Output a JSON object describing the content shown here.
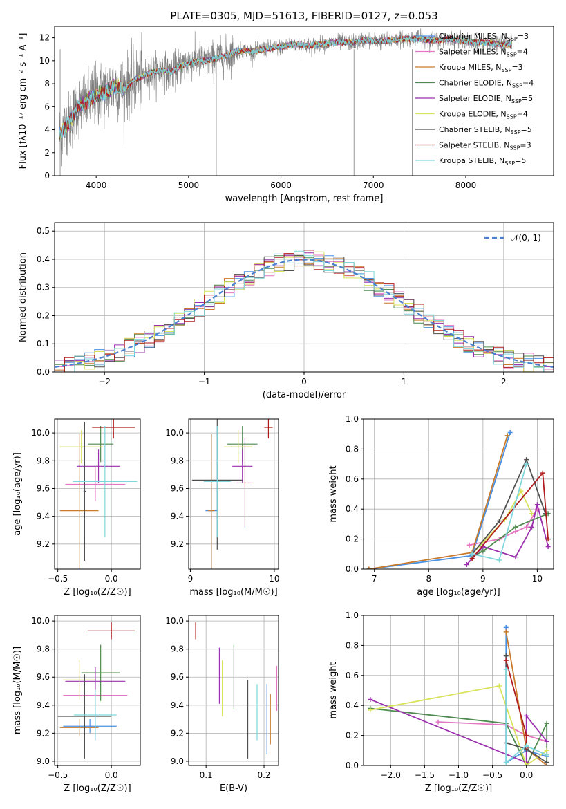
{
  "figure": {
    "title": "PLATE=0305, MJD=51613, FIBERID=0127, z=0.053"
  },
  "colors": {
    "data": "#7f7f7f",
    "series": [
      "#4a90e2",
      "#e377c2",
      "#c9792a",
      "#4f8a4f",
      "#9b2fae",
      "#d8e35a",
      "#505050",
      "#b01c1c",
      "#7fd6dc"
    ],
    "normal": "#4a7fd0",
    "grid": "#b0b0b0"
  },
  "series": [
    {
      "name": "Chabrier MILES",
      "nssp": "3"
    },
    {
      "name": "Salpeter MILES",
      "nssp": "4"
    },
    {
      "name": "Kroupa MILES",
      "nssp": "3"
    },
    {
      "name": "Chabrier ELODIE",
      "nssp": "4"
    },
    {
      "name": "Salpeter ELODIE",
      "nssp": "5"
    },
    {
      "name": "Kroupa ELODIE",
      "nssp": "4"
    },
    {
      "name": "Chabrier STELIB",
      "nssp": "5"
    },
    {
      "name": "Salpeter STELIB",
      "nssp": "3"
    },
    {
      "name": "Kroupa STELIB",
      "nssp": "5"
    }
  ],
  "nssp_prefix": "N",
  "nssp_sub": "SSP",
  "chart_data": [
    {
      "id": "spectrum",
      "type": "line",
      "xlabel": "wavelength [Angstrom, rest frame]",
      "ylabel": "Flux [fλ10⁻¹⁷ erg cm⁻² s⁻¹ A⁻¹]",
      "xlim": [
        3550,
        8950
      ],
      "ylim": [
        0,
        13
      ],
      "xticks": [
        4000,
        5000,
        6000,
        7000,
        8000
      ],
      "yticks": [
        0,
        2,
        4,
        6,
        8,
        10,
        12
      ],
      "grid": false,
      "legend": "top-right",
      "continuum": [
        [
          3600,
          3.5
        ],
        [
          3700,
          4.5
        ],
        [
          3800,
          6.0
        ],
        [
          3900,
          6.5
        ],
        [
          4000,
          7.0
        ],
        [
          4100,
          7.3
        ],
        [
          4200,
          7.8
        ],
        [
          4300,
          7.5
        ],
        [
          4400,
          8.3
        ],
        [
          4500,
          8.6
        ],
        [
          4600,
          9.0
        ],
        [
          4700,
          9.2
        ],
        [
          4800,
          9.0
        ],
        [
          4900,
          9.5
        ],
        [
          5000,
          9.8
        ],
        [
          5100,
          10.0
        ],
        [
          5200,
          10.0
        ],
        [
          5300,
          10.2
        ],
        [
          5400,
          10.4
        ],
        [
          5500,
          10.8
        ],
        [
          5600,
          10.9
        ],
        [
          5700,
          10.8
        ],
        [
          5800,
          11.0
        ],
        [
          5900,
          11.1
        ],
        [
          6000,
          11.2
        ],
        [
          6100,
          11.4
        ],
        [
          6200,
          11.4
        ],
        [
          6300,
          11.3
        ],
        [
          6400,
          11.4
        ],
        [
          6500,
          11.5
        ],
        [
          6600,
          11.6
        ],
        [
          6700,
          11.6
        ],
        [
          6800,
          11.6
        ],
        [
          6900,
          11.8
        ],
        [
          7000,
          11.7
        ],
        [
          7100,
          11.7
        ],
        [
          7200,
          11.8
        ],
        [
          7300,
          11.9
        ],
        [
          7400,
          11.9
        ],
        [
          7500,
          11.9
        ],
        [
          7600,
          11.8
        ],
        [
          7700,
          11.8
        ],
        [
          7800,
          11.9
        ],
        [
          7900,
          11.8
        ],
        [
          8000,
          11.7
        ],
        [
          8100,
          11.6
        ],
        [
          8200,
          11.6
        ],
        [
          8300,
          11.5
        ],
        [
          8400,
          11.4
        ],
        [
          8500,
          11.4
        ]
      ]
    },
    {
      "id": "residuals",
      "type": "area",
      "xlabel": "(data-model)/error",
      "ylabel": "Normed distribution",
      "xlim": [
        -2.5,
        2.5
      ],
      "ylim": [
        0,
        0.53
      ],
      "xticks": [
        -2,
        -1,
        0,
        1,
        2
      ],
      "yticks": [
        0.0,
        0.1,
        0.2,
        0.3,
        0.4,
        0.5
      ],
      "grid": true,
      "legend": "top-right",
      "normal_label": "𝒩(0, 1)",
      "bin_width": 0.1
    },
    {
      "id": "age-z",
      "type": "scatter",
      "xlabel": "Z [log₁₀(Z/Z☉)]",
      "ylabel": "age  [log₁₀(age/yr)]",
      "xlim": [
        -0.53,
        0.27
      ],
      "ylim": [
        9.02,
        10.1
      ],
      "xticks": [
        -0.5,
        0.0
      ],
      "yticks": [
        9.2,
        9.4,
        9.6,
        9.8,
        10.0
      ],
      "grid": true,
      "points": [
        {
          "x": -0.25,
          "y": 9.58,
          "xe": 0.01,
          "ye": 0.35
        },
        {
          "x": -0.15,
          "y": 9.63,
          "xe": 0.28,
          "ye": 0.12
        },
        {
          "x": -0.3,
          "y": 9.44,
          "xe": 0.18,
          "ye": 0.55
        },
        {
          "x": -0.1,
          "y": 9.92,
          "xe": 0.12,
          "ye": 0.13
        },
        {
          "x": -0.12,
          "y": 9.76,
          "xe": 0.2,
          "ye": 0.12
        },
        {
          "x": -0.28,
          "y": 9.9,
          "xe": 0.2,
          "ye": 0.12
        },
        {
          "x": -0.25,
          "y": 9.58,
          "xe": 0.01,
          "ye": 0.5
        },
        {
          "x": 0.02,
          "y": 10.04,
          "xe": 0.2,
          "ye": 0.08
        },
        {
          "x": -0.06,
          "y": 9.65,
          "xe": 0.3,
          "ye": 0.4
        }
      ]
    },
    {
      "id": "age-mass",
      "type": "scatter",
      "xlabel": "mass [log₁₀(M/M☉)]",
      "ylabel": "",
      "xlim": [
        8.98,
        10.05
      ],
      "ylim": [
        9.02,
        10.1
      ],
      "xticks": [
        9,
        10
      ],
      "yticks": [
        9.2,
        9.4,
        9.6,
        9.8,
        10.0
      ],
      "grid": true,
      "points": [
        {
          "x": 9.25,
          "y": 9.44,
          "xe": 0.07,
          "ye": 0.55
        },
        {
          "x": 9.65,
          "y": 9.64,
          "xe": 0.1,
          "ye": 0.32
        },
        {
          "x": 9.25,
          "y": 9.44,
          "xe": 0.04,
          "ye": 0.55
        },
        {
          "x": 9.62,
          "y": 9.92,
          "xe": 0.18,
          "ye": 0.13
        },
        {
          "x": 9.62,
          "y": 9.76,
          "xe": 0.12,
          "ye": 0.12
        },
        {
          "x": 9.57,
          "y": 9.9,
          "xe": 0.17,
          "ye": 0.12
        },
        {
          "x": 9.32,
          "y": 9.66,
          "xe": 0.3,
          "ye": 0.5
        },
        {
          "x": 9.93,
          "y": 10.04,
          "xe": 0.05,
          "ye": 0.08
        },
        {
          "x": 9.32,
          "y": 9.65,
          "xe": 0.16,
          "ye": 0.4
        }
      ]
    },
    {
      "id": "weight-age",
      "type": "line",
      "xlabel": "age  [log₁₀(age/yr)]",
      "ylabel": "mass weight",
      "xlim": [
        6.8,
        10.3
      ],
      "ylim": [
        0,
        1.0
      ],
      "xticks": [
        7,
        8,
        9,
        10
      ],
      "yticks": [
        0.0,
        0.2,
        0.4,
        0.6,
        0.8,
        1.0
      ],
      "grid": true,
      "series": [
        [
          [
            6.9,
            0.0
          ],
          [
            8.8,
            0.09
          ],
          [
            9.5,
            0.91
          ]
        ],
        [
          [
            8.75,
            0.16
          ],
          [
            9.3,
            0.2
          ],
          [
            9.6,
            0.25
          ],
          [
            9.8,
            0.28
          ],
          [
            10.0,
            0.4
          ]
        ],
        [
          [
            6.9,
            0.0
          ],
          [
            8.8,
            0.11
          ],
          [
            9.45,
            0.89
          ]
        ],
        [
          [
            8.8,
            0.08
          ],
          [
            9.0,
            0.12
          ],
          [
            9.6,
            0.28
          ],
          [
            10.2,
            0.37
          ]
        ],
        [
          [
            8.7,
            0.03
          ],
          [
            9.0,
            0.15
          ],
          [
            9.6,
            0.08
          ],
          [
            9.9,
            0.28
          ],
          [
            10.0,
            0.43
          ],
          [
            10.2,
            0.15
          ]
        ],
        [
          [
            8.8,
            0.1
          ],
          [
            9.4,
            0.33
          ],
          [
            9.7,
            0.52
          ],
          [
            9.9,
            0.37
          ]
        ],
        [
          [
            8.8,
            0.1
          ],
          [
            9.3,
            0.32
          ],
          [
            9.8,
            0.73
          ],
          [
            10.15,
            0.37
          ]
        ],
        [
          [
            8.8,
            0.07
          ],
          [
            10.1,
            0.64
          ],
          [
            10.2,
            0.2
          ]
        ],
        [
          [
            8.8,
            0.1
          ],
          [
            9.3,
            0.06
          ],
          [
            9.8,
            0.7
          ]
        ]
      ]
    },
    {
      "id": "mass-z",
      "type": "scatter",
      "xlabel": "Z [log₁₀(Z/Z☉)]",
      "ylabel": "mass [log₁₀(M/M☉)]",
      "xlim": [
        -0.53,
        0.27
      ],
      "ylim": [
        8.97,
        10.04
      ],
      "xticks": [
        -0.5,
        0.0
      ],
      "yticks": [
        9.0,
        9.2,
        9.4,
        9.6,
        9.8,
        10.0
      ],
      "grid": true,
      "points": [
        {
          "x": -0.2,
          "y": 9.25,
          "xe": 0.25,
          "ye": 0.05
        },
        {
          "x": -0.15,
          "y": 9.47,
          "xe": 0.3,
          "ye": 0.1
        },
        {
          "x": -0.3,
          "y": 9.24,
          "xe": 0.18,
          "ye": 0.06
        },
        {
          "x": -0.1,
          "y": 9.63,
          "xe": 0.18,
          "ye": 0.2
        },
        {
          "x": -0.15,
          "y": 9.57,
          "xe": 0.28,
          "ye": 0.1
        },
        {
          "x": -0.3,
          "y": 9.58,
          "xe": 0.15,
          "ye": 0.14
        },
        {
          "x": -0.25,
          "y": 9.32,
          "xe": 0.25,
          "ye": 0.3
        },
        {
          "x": 0.0,
          "y": 9.93,
          "xe": 0.22,
          "ye": 0.06
        },
        {
          "x": -0.15,
          "y": 9.33,
          "xe": 0.2,
          "ye": 0.18
        }
      ]
    },
    {
      "id": "mass-ebv",
      "type": "scatter",
      "xlabel": "E(B-V)",
      "ylabel": "",
      "xlim": [
        0.07,
        0.225
      ],
      "ylim": [
        8.97,
        10.04
      ],
      "xticks": [
        0.1,
        0.2
      ],
      "yticks": [
        9.0,
        9.2,
        9.4,
        9.6,
        9.8,
        10.0
      ],
      "grid": true,
      "points": [
        {
          "x": 0.205,
          "y": 9.3,
          "xe": 0,
          "ye": 0.25
        },
        {
          "x": 0.222,
          "y": 9.52,
          "xe": 0,
          "ye": 0.16
        },
        {
          "x": 0.211,
          "y": 9.3,
          "xe": 0,
          "ye": 0.18
        },
        {
          "x": 0.148,
          "y": 9.6,
          "xe": 0,
          "ye": 0.23
        },
        {
          "x": 0.123,
          "y": 9.61,
          "xe": 0,
          "ye": 0.2
        },
        {
          "x": 0.128,
          "y": 9.52,
          "xe": 0,
          "ye": 0.2
        },
        {
          "x": 0.172,
          "y": 9.3,
          "xe": 0,
          "ye": 0.28
        },
        {
          "x": 0.082,
          "y": 9.93,
          "xe": 0,
          "ye": 0.06
        },
        {
          "x": 0.188,
          "y": 9.35,
          "xe": 0,
          "ye": 0.2
        }
      ]
    },
    {
      "id": "weight-z",
      "type": "line",
      "xlabel": "Z [log₁₀(Z/Z☉)]",
      "ylabel": "mass weight",
      "xlim": [
        -2.4,
        0.4
      ],
      "ylim": [
        0,
        1.0
      ],
      "xticks": [
        -2.0,
        -1.5,
        -1.0,
        -0.5,
        0.0
      ],
      "yticks": [
        0.0,
        0.2,
        0.4,
        0.6,
        0.8,
        1.0
      ],
      "grid": true,
      "series": [
        [
          [
            -0.3,
            0.92
          ],
          [
            -0.3,
            0.02
          ],
          [
            0.0,
            0.1
          ],
          [
            0.3,
            0.06
          ]
        ],
        [
          [
            -1.3,
            0.29
          ],
          [
            -0.3,
            0.27
          ],
          [
            0.0,
            0.2
          ],
          [
            0.3,
            0.16
          ]
        ],
        [
          [
            -0.3,
            0.89
          ],
          [
            0.0,
            0.11
          ],
          [
            0.3,
            0.0
          ]
        ],
        [
          [
            -2.3,
            0.38
          ],
          [
            -0.3,
            0.28
          ],
          [
            0.0,
            0.0
          ],
          [
            0.3,
            0.28
          ],
          [
            0.3,
            0.02
          ]
        ],
        [
          [
            -2.3,
            0.44
          ],
          [
            0.0,
            0.02
          ],
          [
            0.0,
            0.33
          ],
          [
            0.3,
            0.16
          ]
        ],
        [
          [
            -2.3,
            0.37
          ],
          [
            -0.4,
            0.53
          ],
          [
            0.0,
            0.0
          ],
          [
            0.3,
            0.1
          ]
        ],
        [
          [
            -0.3,
            0.73
          ],
          [
            -0.3,
            0.15
          ],
          [
            0.0,
            0.11
          ],
          [
            0.3,
            0.02
          ]
        ],
        [
          [
            -0.3,
            0.7
          ],
          [
            0.0,
            0.2
          ],
          [
            0.0,
            0.12
          ]
        ],
        [
          [
            -0.3,
            0.64
          ],
          [
            -0.3,
            0.02
          ],
          [
            0.0,
            0.13
          ],
          [
            0.3,
            0.07
          ]
        ]
      ]
    }
  ]
}
